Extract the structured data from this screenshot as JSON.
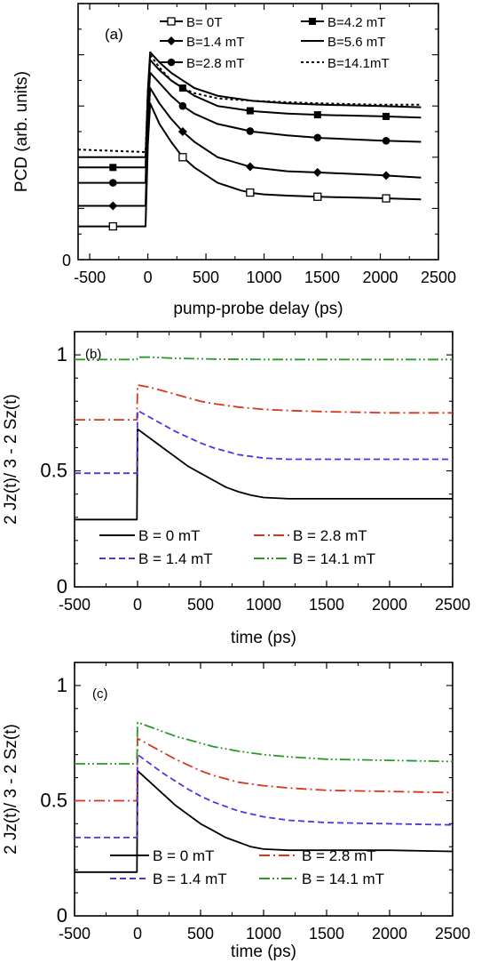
{
  "chart_data": [
    {
      "panel": "(a)",
      "type": "line",
      "xlabel": "pump-probe delay (ps)",
      "ylabel": "PCD (arb. units)",
      "xlim": [
        -600,
        2500
      ],
      "ylim": [
        0,
        10
      ],
      "xticks": [
        -500,
        0,
        500,
        1000,
        1500,
        2000,
        2500
      ],
      "yticks": [
        0
      ],
      "legend_position": "top",
      "series": [
        {
          "name": "B= 0T",
          "color": "#000000",
          "dash": "solid",
          "marker": "open-square",
          "x": [
            -600,
            -20,
            0,
            20,
            100,
            200,
            300,
            400,
            600,
            800,
            900,
            1000,
            1200,
            1500,
            2000,
            2350
          ],
          "y": [
            1.3,
            1.3,
            4.5,
            6.1,
            5.3,
            4.6,
            4.0,
            3.6,
            3.0,
            2.7,
            2.6,
            2.55,
            2.5,
            2.45,
            2.4,
            2.35
          ]
        },
        {
          "name": "B=1.4 mT",
          "color": "#000000",
          "dash": "solid",
          "marker": "filled-diamond",
          "x": [
            -600,
            -20,
            0,
            20,
            100,
            200,
            300,
            400,
            600,
            900,
            1200,
            1500,
            2000,
            2350
          ],
          "y": [
            2.1,
            2.1,
            5.1,
            6.7,
            6.1,
            5.5,
            5.0,
            4.6,
            4.0,
            3.6,
            3.45,
            3.4,
            3.3,
            3.2
          ]
        },
        {
          "name": "B=2.8 mT",
          "color": "#000000",
          "dash": "solid",
          "marker": "filled-circle",
          "x": [
            -600,
            -20,
            0,
            20,
            100,
            200,
            300,
            400,
            600,
            900,
            1200,
            1500,
            2000,
            2350
          ],
          "y": [
            3.0,
            3.0,
            5.8,
            7.3,
            6.9,
            6.4,
            6.0,
            5.7,
            5.3,
            5.0,
            4.85,
            4.75,
            4.65,
            4.6
          ]
        },
        {
          "name": "B=4.2 mT",
          "color": "#000000",
          "dash": "solid",
          "marker": "filled-square",
          "x": [
            -600,
            -20,
            0,
            20,
            100,
            200,
            300,
            400,
            600,
            900,
            1200,
            1500,
            2000,
            2350
          ],
          "y": [
            3.6,
            3.6,
            6.2,
            7.8,
            7.4,
            7.0,
            6.7,
            6.4,
            6.0,
            5.8,
            5.7,
            5.65,
            5.6,
            5.55
          ]
        },
        {
          "name": "B=5.6 mT",
          "color": "#000000",
          "dash": "solid",
          "marker": "none",
          "x": [
            -600,
            -20,
            0,
            20,
            100,
            200,
            300,
            400,
            600,
            900,
            1200,
            1500,
            2000,
            2350
          ],
          "y": [
            4.0,
            4.0,
            6.6,
            8.1,
            7.7,
            7.3,
            7.0,
            6.7,
            6.4,
            6.2,
            6.1,
            6.05,
            6.0,
            5.95
          ]
        },
        {
          "name": "B=14.1mT",
          "color": "#000000",
          "dash": "dotted",
          "marker": "none",
          "x": [
            -600,
            -20,
            0,
            20,
            100,
            200,
            300,
            400,
            600,
            900,
            1200,
            1500,
            2000,
            2350
          ],
          "y": [
            4.3,
            4.2,
            6.5,
            8.0,
            7.5,
            7.0,
            6.7,
            6.5,
            6.3,
            6.2,
            6.15,
            6.1,
            6.05,
            6.05
          ]
        }
      ]
    },
    {
      "panel": "(b)",
      "type": "line",
      "xlabel": "time  (ps)",
      "ylabel": "2 Jz(t)/ 3 - 2 Sz(t)",
      "xlim": [
        -500,
        2500
      ],
      "ylim": [
        0,
        1.1
      ],
      "xticks": [
        -500,
        0,
        500,
        1000,
        1500,
        2000,
        2500
      ],
      "yticks": [
        0,
        0.5,
        1
      ],
      "ytick_labels": [
        "0",
        "0.5",
        "1"
      ],
      "legend_position": "bottom",
      "series": [
        {
          "name": "B = 0 mT",
          "color": "#000000",
          "dash": "solid",
          "x": [
            -500,
            -5,
            0,
            100,
            200,
            300,
            400,
            500,
            600,
            700,
            800,
            900,
            1000,
            1200,
            1500,
            2000,
            2500
          ],
          "y": [
            0.29,
            0.29,
            0.68,
            0.64,
            0.6,
            0.56,
            0.52,
            0.49,
            0.46,
            0.43,
            0.41,
            0.395,
            0.385,
            0.38,
            0.38,
            0.38,
            0.38
          ]
        },
        {
          "name": "B = 2.8 mT",
          "color": "#d8351e",
          "dash": "dashdot",
          "x": [
            -500,
            -5,
            0,
            100,
            200,
            300,
            400,
            500,
            600,
            800,
            1000,
            1200,
            1500,
            2000,
            2500
          ],
          "y": [
            0.72,
            0.72,
            0.87,
            0.86,
            0.845,
            0.83,
            0.815,
            0.8,
            0.79,
            0.775,
            0.765,
            0.76,
            0.755,
            0.75,
            0.75
          ]
        },
        {
          "name": "B = 1.4 mT",
          "color": "#5a2ee0",
          "dash": "dashed",
          "x": [
            -500,
            -5,
            0,
            100,
            200,
            300,
            400,
            500,
            600,
            800,
            1000,
            1200,
            1500,
            2000,
            2500
          ],
          "y": [
            0.49,
            0.49,
            0.76,
            0.73,
            0.7,
            0.67,
            0.645,
            0.62,
            0.6,
            0.57,
            0.555,
            0.55,
            0.55,
            0.55,
            0.55
          ]
        },
        {
          "name": "B = 14.1 mT",
          "color": "#2a9a2a",
          "dash": "dashdotdot",
          "x": [
            -500,
            -5,
            0,
            100,
            300,
            600,
            1000,
            1500,
            2000,
            2500
          ],
          "y": [
            0.98,
            0.98,
            0.99,
            0.99,
            0.985,
            0.982,
            0.98,
            0.98,
            0.98,
            0.98
          ]
        }
      ]
    },
    {
      "panel": "(c)",
      "type": "line",
      "xlabel": "time  (ps)",
      "ylabel": "2 Jz(t)/ 3 - 2 Sz(t)",
      "xlim": [
        -500,
        2500
      ],
      "ylim": [
        0,
        1.1
      ],
      "xticks": [
        -500,
        0,
        500,
        1000,
        1500,
        2000,
        2500
      ],
      "yticks": [
        0,
        0.5,
        1
      ],
      "ytick_labels": [
        "0",
        "0.5",
        "1"
      ],
      "legend_position": "bottom",
      "series": [
        {
          "name": "B = 0 mT",
          "color": "#000000",
          "dash": "solid",
          "x": [
            -500,
            -5,
            0,
            100,
            200,
            300,
            400,
            500,
            600,
            700,
            800,
            900,
            1000,
            1200,
            1500,
            2000,
            2500
          ],
          "y": [
            0.19,
            0.19,
            0.63,
            0.58,
            0.53,
            0.48,
            0.44,
            0.4,
            0.37,
            0.34,
            0.32,
            0.3,
            0.29,
            0.285,
            0.285,
            0.285,
            0.28
          ]
        },
        {
          "name": "B = 2.8 mT",
          "color": "#d8351e",
          "dash": "dashdot",
          "x": [
            -500,
            -5,
            0,
            100,
            200,
            300,
            400,
            500,
            600,
            800,
            1000,
            1200,
            1500,
            2000,
            2500
          ],
          "y": [
            0.5,
            0.5,
            0.77,
            0.74,
            0.71,
            0.68,
            0.655,
            0.63,
            0.61,
            0.58,
            0.565,
            0.555,
            0.545,
            0.54,
            0.535
          ]
        },
        {
          "name": "B = 1.4 mT",
          "color": "#5a2ee0",
          "dash": "dashed",
          "x": [
            -500,
            -5,
            0,
            100,
            200,
            300,
            400,
            500,
            600,
            800,
            1000,
            1200,
            1500,
            2000,
            2500
          ],
          "y": [
            0.34,
            0.34,
            0.7,
            0.66,
            0.62,
            0.585,
            0.55,
            0.52,
            0.495,
            0.455,
            0.43,
            0.415,
            0.405,
            0.4,
            0.395
          ]
        },
        {
          "name": "B = 14.1 mT",
          "color": "#2a9a2a",
          "dash": "dashdotdot",
          "x": [
            -500,
            -5,
            0,
            100,
            200,
            300,
            400,
            500,
            600,
            800,
            1000,
            1200,
            1500,
            2000,
            2500
          ],
          "y": [
            0.66,
            0.66,
            0.84,
            0.82,
            0.8,
            0.78,
            0.765,
            0.75,
            0.735,
            0.715,
            0.7,
            0.69,
            0.68,
            0.675,
            0.67
          ]
        }
      ]
    }
  ]
}
